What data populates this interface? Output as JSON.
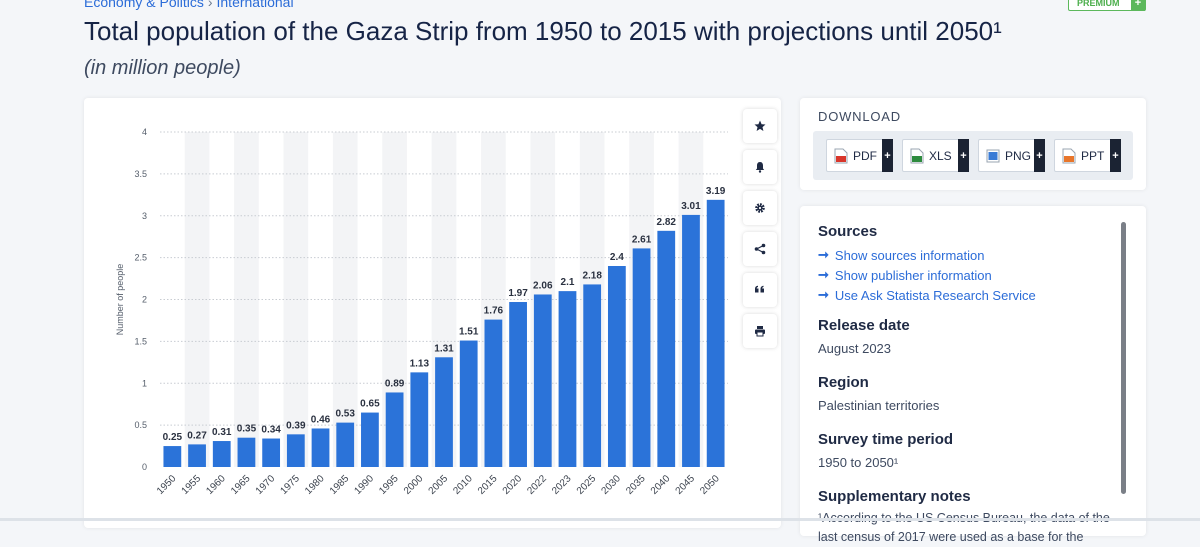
{
  "breadcrumb": {
    "part1": "Economy & Politics",
    "separator": "›",
    "part2": "International"
  },
  "premium": {
    "label": "PREMIUM",
    "plus": "+"
  },
  "page_title": "Total population of the Gaza Strip from 1950 to 2015 with projections until 2050¹",
  "subtitle": "(in million people)",
  "toolbar": {
    "icons": [
      "star-icon",
      "bell-icon",
      "gear-icon",
      "share-icon",
      "quote-icon",
      "print-icon"
    ]
  },
  "download": {
    "title": "DOWNLOAD",
    "buttons": [
      {
        "label": "PDF",
        "plus": "+",
        "color": "#d9362b"
      },
      {
        "label": "XLS",
        "plus": "+",
        "color": "#2e8b3e"
      },
      {
        "label": "PNG",
        "plus": "+",
        "color": "#3a7bd5"
      },
      {
        "label": "PPT",
        "plus": "+",
        "color": "#e8762b"
      }
    ]
  },
  "info": {
    "sources_heading": "Sources",
    "links": [
      "Show sources information",
      "Show publisher information",
      "Use Ask Statista Research Service"
    ],
    "arrow": "➞",
    "release_heading": "Release date",
    "release_value": "August 2023",
    "region_heading": "Region",
    "region_value": "Palestinian territories",
    "survey_heading": "Survey time period",
    "survey_value": "1950 to 2050¹",
    "notes_heading": "Supplementary notes",
    "notes_value": "¹According to the US Census Bureau, the data of the last census of 2017 were used as a base for the"
  },
  "colors": {
    "bar": "#2b73d9",
    "accent": "#2b6cd8"
  },
  "chart_data": {
    "type": "bar",
    "categories": [
      "1950",
      "1955",
      "1960",
      "1965",
      "1970",
      "1975",
      "1980",
      "1985",
      "1990",
      "1995",
      "2000",
      "2005",
      "2010",
      "2015",
      "2020",
      "2022",
      "2023",
      "2025",
      "2030",
      "2035",
      "2040",
      "2045",
      "2050"
    ],
    "values": [
      0.25,
      0.27,
      0.31,
      0.35,
      0.34,
      0.39,
      0.46,
      0.53,
      0.65,
      0.89,
      1.13,
      1.31,
      1.51,
      1.76,
      1.97,
      2.06,
      2.1,
      2.18,
      2.4,
      2.61,
      2.82,
      3.01,
      3.19
    ],
    "value_labels": [
      "0.25",
      "0.27",
      "0.31",
      "0.35",
      "0.34",
      "0.39",
      "0.46",
      "0.53",
      "0.65",
      "0.89",
      "1.13",
      "1.31",
      "1.51",
      "1.76",
      "1.97",
      "2.06",
      "2.1",
      "2.18",
      "2.4",
      "2.61",
      "2.82",
      "3.01",
      "3.19"
    ],
    "ylabel": "Number of people",
    "ylim": [
      0,
      4
    ],
    "yticks": [
      0,
      0.5,
      1,
      1.5,
      2,
      2.5,
      3,
      3.5,
      4
    ],
    "ytick_labels": [
      "0",
      "0.5",
      "1",
      "1.5",
      "2",
      "2.5",
      "3",
      "3.5",
      "4"
    ],
    "grid": true
  }
}
